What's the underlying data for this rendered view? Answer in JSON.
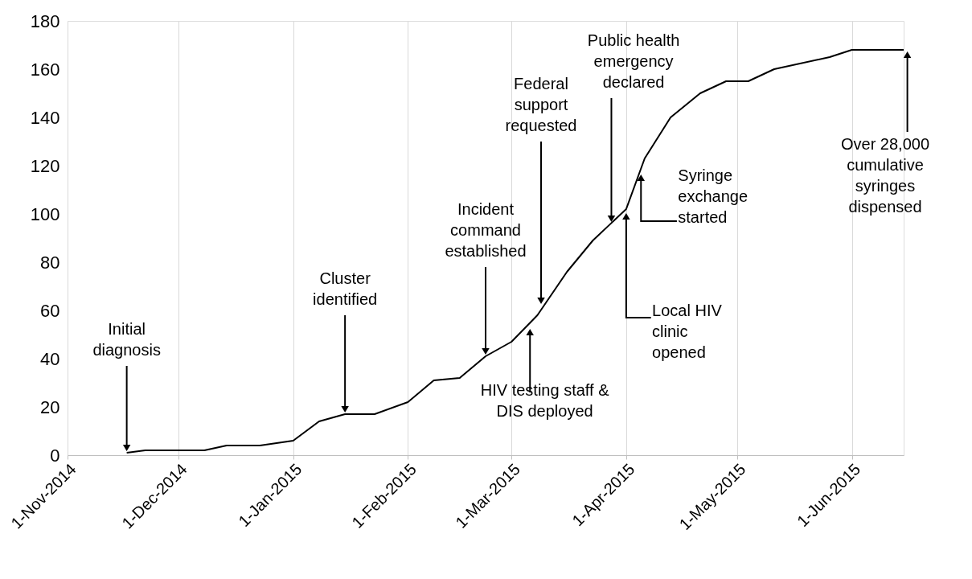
{
  "chart_data": {
    "type": "line",
    "color": "#000000",
    "x": [
      "2014-11-17",
      "2014-11-22",
      "2014-12-01",
      "2014-12-08",
      "2014-12-14",
      "2014-12-23",
      "2015-01-01",
      "2015-01-08",
      "2015-01-15",
      "2015-01-23",
      "2015-02-01",
      "2015-02-08",
      "2015-02-15",
      "2015-02-22",
      "2015-03-01",
      "2015-03-08",
      "2015-03-16",
      "2015-03-23",
      "2015-04-01",
      "2015-04-06",
      "2015-04-13",
      "2015-04-21",
      "2015-04-28",
      "2015-05-04",
      "2015-05-11",
      "2015-05-26",
      "2015-06-01",
      "2015-06-08",
      "2015-06-15"
    ],
    "values": [
      1,
      2,
      2,
      2,
      4,
      4,
      6,
      14,
      17,
      17,
      22,
      31,
      32,
      41,
      47,
      58,
      76,
      89,
      102,
      123,
      140,
      150,
      155,
      155,
      160,
      165,
      168,
      168,
      168
    ],
    "xlim": [
      "2014-11-01",
      "2015-06-15"
    ],
    "xticks": [
      {
        "value": "2014-11-01",
        "label": "1-Nov-2014"
      },
      {
        "value": "2014-12-01",
        "label": "1-Dec-2014"
      },
      {
        "value": "2015-01-01",
        "label": "1-Jan-2015"
      },
      {
        "value": "2015-02-01",
        "label": "1-Feb-2015"
      },
      {
        "value": "2015-03-01",
        "label": "1-Mar-2015"
      },
      {
        "value": "2015-04-01",
        "label": "1-Apr-2015"
      },
      {
        "value": "2015-05-01",
        "label": "1-May-2015"
      },
      {
        "value": "2015-06-01",
        "label": "1-Jun-2015"
      }
    ],
    "ylim": [
      0,
      180
    ],
    "yticks": [
      0,
      20,
      40,
      60,
      80,
      100,
      120,
      140,
      160,
      180
    ],
    "grid": "x",
    "marker": "none",
    "line_style": "solid",
    "annotations": [
      {
        "text": "Initial\ndiagnosis",
        "x": "2014-11-17",
        "y": 1
      },
      {
        "text": "Cluster\nidentified",
        "x": "2015-01-15",
        "y": 17
      },
      {
        "text": "Incident\ncommand\nestablished",
        "x": "2015-02-22",
        "y": 41
      },
      {
        "text": "HIV testing staff &\nDIS deployed",
        "x": "2015-03-06",
        "y": 53
      },
      {
        "text": "Federal\nsupport\nrequested",
        "x": "2015-03-09",
        "y": 62
      },
      {
        "text": "Public health\nemergency\ndeclared",
        "x": "2015-03-28",
        "y": 96
      },
      {
        "text": "Local HIV\nclinic\nopened",
        "x": "2015-04-01",
        "y": 101
      },
      {
        "text": "Syringe\nexchange\nstarted",
        "x": "2015-04-05",
        "y": 117
      },
      {
        "text": "Over 28,000\ncumulative\nsyringes\ndispensed",
        "x": "2015-06-16",
        "y": 168
      }
    ]
  }
}
